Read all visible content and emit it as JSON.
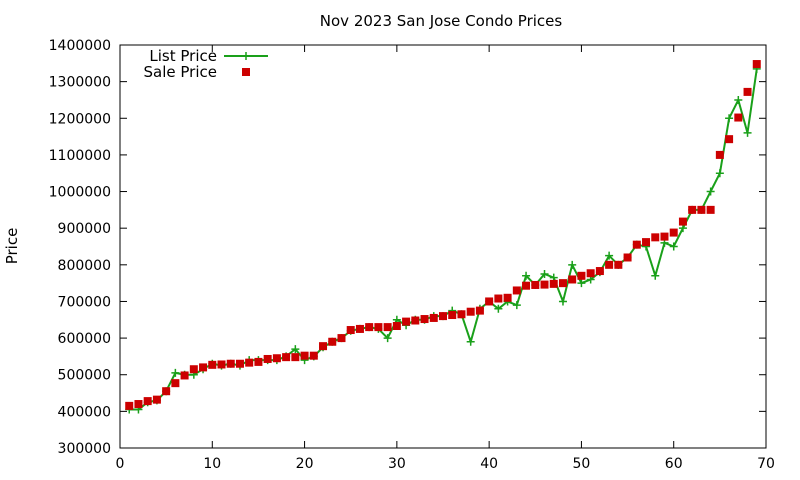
{
  "chart_data": {
    "type": "line",
    "title": "Nov 2023 San Jose Condo Prices",
    "xlabel": "",
    "ylabel": "Price",
    "xlim": [
      0,
      70
    ],
    "ylim": [
      300000,
      1400000
    ],
    "x_ticks": [
      0,
      10,
      20,
      30,
      40,
      50,
      60,
      70
    ],
    "y_ticks": [
      300000,
      400000,
      500000,
      600000,
      700000,
      800000,
      900000,
      1000000,
      1100000,
      1200000,
      1300000,
      1400000
    ],
    "grid": false,
    "legend_position": "top-left",
    "series": [
      {
        "name": "List Price",
        "style": "line+cross",
        "color": "#1aa01a",
        "x": [
          1,
          2,
          3,
          4,
          5,
          6,
          7,
          8,
          9,
          10,
          11,
          12,
          13,
          14,
          15,
          16,
          17,
          18,
          19,
          20,
          21,
          22,
          23,
          24,
          25,
          26,
          27,
          28,
          29,
          30,
          31,
          32,
          33,
          34,
          35,
          36,
          37,
          38,
          39,
          40,
          41,
          42,
          43,
          44,
          45,
          46,
          47,
          48,
          49,
          50,
          51,
          52,
          53,
          54,
          55,
          56,
          57,
          58,
          59,
          60,
          61,
          62,
          63,
          64,
          65,
          66,
          67,
          68,
          69
        ],
        "values": [
          405000,
          405000,
          425000,
          430000,
          455000,
          505000,
          500000,
          500000,
          515000,
          530000,
          525000,
          530000,
          525000,
          540000,
          540000,
          540000,
          540000,
          550000,
          570000,
          540000,
          550000,
          575000,
          590000,
          600000,
          620000,
          625000,
          630000,
          625000,
          600000,
          650000,
          635000,
          650000,
          650000,
          660000,
          660000,
          675000,
          665000,
          590000,
          680000,
          700000,
          680000,
          700000,
          690000,
          770000,
          745000,
          775000,
          765000,
          700000,
          800000,
          750000,
          760000,
          780000,
          825000,
          800000,
          820000,
          855000,
          850000,
          770000,
          860000,
          850000,
          900000,
          950000,
          950000,
          1000000,
          1050000,
          1200000,
          1250000,
          1160000,
          1335000
        ]
      },
      {
        "name": "Sale Price",
        "style": "square-points",
        "color": "#cc0000",
        "x": [
          1,
          2,
          3,
          4,
          5,
          6,
          7,
          8,
          9,
          10,
          11,
          12,
          13,
          14,
          15,
          16,
          17,
          18,
          19,
          20,
          21,
          22,
          23,
          24,
          25,
          26,
          27,
          28,
          29,
          30,
          31,
          32,
          33,
          34,
          35,
          36,
          37,
          38,
          39,
          40,
          41,
          42,
          43,
          44,
          45,
          46,
          47,
          48,
          49,
          50,
          51,
          52,
          53,
          54,
          55,
          56,
          57,
          58,
          59,
          60,
          61,
          62,
          63,
          64,
          65,
          66,
          67,
          68,
          69
        ],
        "values": [
          415000,
          420000,
          428000,
          432000,
          455000,
          477000,
          498000,
          515000,
          520000,
          527000,
          528000,
          530000,
          530000,
          533000,
          535000,
          543000,
          545000,
          548000,
          548000,
          552000,
          552000,
          578000,
          590000,
          600000,
          622000,
          625000,
          630000,
          630000,
          630000,
          633000,
          645000,
          648000,
          652000,
          655000,
          660000,
          663000,
          665000,
          672000,
          675000,
          700000,
          708000,
          710000,
          730000,
          743000,
          745000,
          746000,
          748000,
          750000,
          760000,
          770000,
          777000,
          783000,
          800000,
          800000,
          820000,
          855000,
          862000,
          875000,
          877000,
          888000,
          918000,
          950000,
          950000,
          950000,
          1100000,
          1143000,
          1202000,
          1272000,
          1348000
        ]
      }
    ]
  }
}
